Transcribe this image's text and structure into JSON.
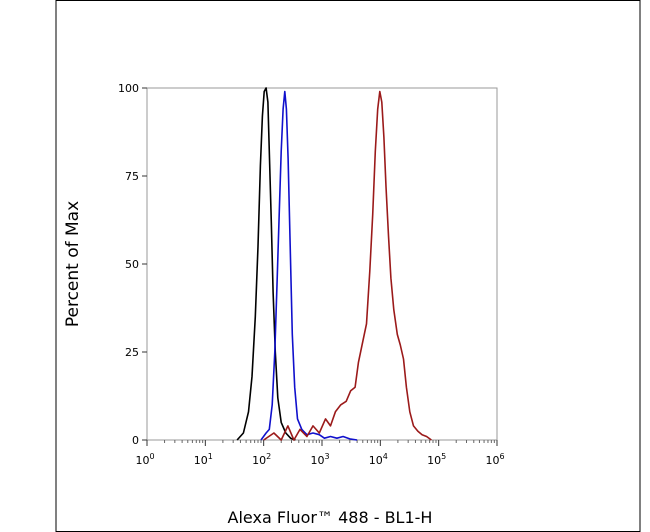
{
  "chart_data": {
    "type": "line",
    "xlabel": "Alexa Fluor™ 488 - BL1-H",
    "ylabel": "Percent of Max",
    "x_scale": "log",
    "xlim": [
      1,
      1000000
    ],
    "ylim": [
      0,
      100
    ],
    "x_ticks": [
      {
        "value": 1,
        "base": "10",
        "exp": "0"
      },
      {
        "value": 10,
        "base": "10",
        "exp": "1"
      },
      {
        "value": 100,
        "base": "10",
        "exp": "2"
      },
      {
        "value": 1000,
        "base": "10",
        "exp": "3"
      },
      {
        "value": 10000,
        "base": "10",
        "exp": "4"
      },
      {
        "value": 100000,
        "base": "10",
        "exp": "5"
      },
      {
        "value": 1000000,
        "base": "10",
        "exp": "6"
      }
    ],
    "y_ticks": [
      {
        "value": 0,
        "label": "0"
      },
      {
        "value": 25,
        "label": "25"
      },
      {
        "value": 50,
        "label": "50"
      },
      {
        "value": 75,
        "label": "75"
      },
      {
        "value": 100,
        "label": "100"
      }
    ],
    "grid": false,
    "legend": "none",
    "series": [
      {
        "color": "#000000",
        "points": [
          [
            35,
            0
          ],
          [
            45,
            2
          ],
          [
            55,
            8
          ],
          [
            63,
            18
          ],
          [
            72,
            35
          ],
          [
            80,
            55
          ],
          [
            88,
            78
          ],
          [
            95,
            92
          ],
          [
            102,
            99
          ],
          [
            110,
            100
          ],
          [
            118,
            96
          ],
          [
            126,
            80
          ],
          [
            135,
            62
          ],
          [
            145,
            42
          ],
          [
            158,
            25
          ],
          [
            175,
            12
          ],
          [
            200,
            5
          ],
          [
            240,
            2
          ],
          [
            290,
            0.5
          ],
          [
            350,
            0
          ]
        ]
      },
      {
        "color": "#1010cc",
        "points": [
          [
            90,
            0
          ],
          [
            110,
            2
          ],
          [
            125,
            3
          ],
          [
            140,
            10
          ],
          [
            155,
            25
          ],
          [
            170,
            45
          ],
          [
            185,
            65
          ],
          [
            200,
            82
          ],
          [
            215,
            94
          ],
          [
            230,
            99
          ],
          [
            245,
            94
          ],
          [
            262,
            80
          ],
          [
            285,
            55
          ],
          [
            310,
            30
          ],
          [
            340,
            15
          ],
          [
            380,
            6
          ],
          [
            450,
            3
          ],
          [
            550,
            1.5
          ],
          [
            700,
            2
          ],
          [
            900,
            1.5
          ],
          [
            1100,
            0.5
          ],
          [
            1400,
            1
          ],
          [
            1800,
            0.5
          ],
          [
            2300,
            1
          ],
          [
            3000,
            0.3
          ],
          [
            4000,
            0
          ]
        ]
      },
      {
        "color": "#9b1a1a",
        "points": [
          [
            100,
            0
          ],
          [
            150,
            2
          ],
          [
            200,
            0
          ],
          [
            260,
            4
          ],
          [
            330,
            0
          ],
          [
            420,
            3
          ],
          [
            550,
            1
          ],
          [
            700,
            4
          ],
          [
            900,
            2
          ],
          [
            1150,
            6
          ],
          [
            1400,
            4
          ],
          [
            1700,
            8
          ],
          [
            2100,
            10
          ],
          [
            2600,
            11
          ],
          [
            3100,
            14
          ],
          [
            3700,
            15
          ],
          [
            4200,
            22
          ],
          [
            5000,
            28
          ],
          [
            5800,
            33
          ],
          [
            6600,
            48
          ],
          [
            7400,
            64
          ],
          [
            8200,
            82
          ],
          [
            9000,
            94
          ],
          [
            9800,
            99
          ],
          [
            10600,
            96
          ],
          [
            11500,
            86
          ],
          [
            12500,
            72
          ],
          [
            13800,
            58
          ],
          [
            15200,
            46
          ],
          [
            17000,
            37
          ],
          [
            19500,
            30
          ],
          [
            22000,
            27
          ],
          [
            25000,
            23
          ],
          [
            28000,
            15
          ],
          [
            32000,
            8
          ],
          [
            37000,
            4
          ],
          [
            44000,
            2.5
          ],
          [
            52000,
            1.5
          ],
          [
            62000,
            1
          ],
          [
            75000,
            0
          ]
        ]
      }
    ]
  }
}
